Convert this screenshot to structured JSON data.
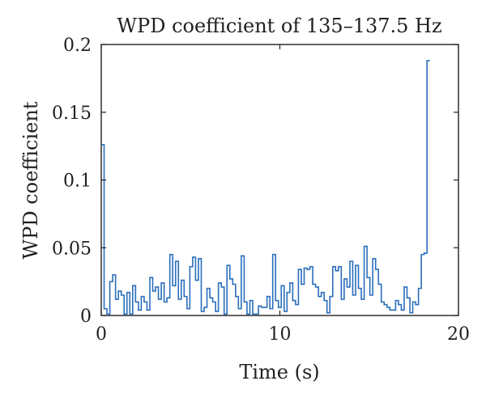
{
  "chart_data": {
    "type": "line",
    "title": "WPD coefficient of 135–137.5 Hz",
    "xlabel": "Time (s)",
    "ylabel": "WPD coefficient",
    "xlim": [
      0,
      20
    ],
    "ylim": [
      0,
      0.2
    ],
    "xticks": [
      0,
      10,
      20
    ],
    "xtick_labels": [
      "0",
      "10",
      "20"
    ],
    "yticks": [
      0,
      0.05,
      0.1,
      0.15,
      0.2
    ],
    "ytick_labels": [
      "0",
      "0.05",
      "0.1",
      "0.15",
      "0.2"
    ],
    "grid": false,
    "color": "#2a6ebb",
    "step_width": 0.16,
    "values": [
      0.126,
      0.005,
      0.001,
      0.025,
      0.03,
      0.012,
      0.018,
      0.015,
      0.001,
      0.017,
      0.001,
      0.022,
      0.01,
      0.004,
      0.014,
      0.01,
      0.004,
      0.028,
      0.018,
      0.021,
      0.012,
      0.024,
      0.01,
      0.013,
      0.045,
      0.022,
      0.04,
      0.012,
      0.026,
      0.014,
      0.005,
      0.036,
      0.043,
      0.026,
      0.042,
      0.003,
      0.006,
      0.02,
      0.013,
      0.01,
      0.003,
      0.024,
      0.021,
      0.001,
      0.037,
      0.027,
      0.023,
      0.014,
      0.005,
      0.044,
      0.01,
      0.001,
      0.011,
      0.001,
      0.001,
      0.007,
      0.006,
      0.006,
      0.014,
      0.005,
      0.045,
      0.011,
      0.006,
      0.022,
      0.003,
      0.017,
      0.024,
      0.011,
      0.008,
      0.034,
      0.023,
      0.035,
      0.034,
      0.036,
      0.023,
      0.021,
      0.014,
      0.017,
      0.011,
      0.002,
      0.014,
      0.036,
      0.033,
      0.036,
      0.012,
      0.027,
      0.021,
      0.04,
      0.015,
      0.037,
      0.02,
      0.012,
      0.051,
      0.028,
      0.015,
      0.042,
      0.034,
      0.023,
      0.01,
      0.008,
      0.006,
      0.004,
      0.004,
      0.011,
      0.008,
      0.004,
      0.021,
      0.013,
      0.002,
      0.01,
      0.008,
      0.02,
      0.045,
      0.046,
      0.188
    ]
  }
}
